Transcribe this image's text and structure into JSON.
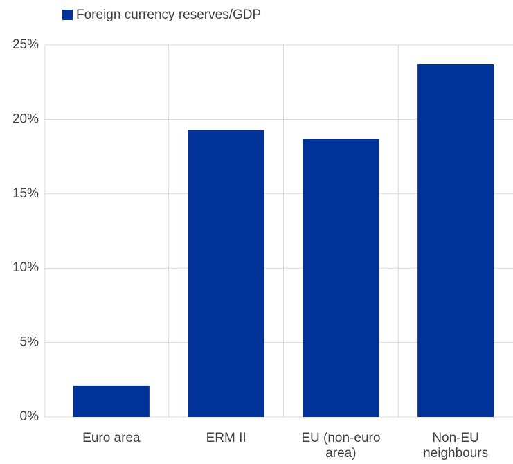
{
  "chart_data": {
    "type": "bar",
    "legend": "top-left",
    "categories": [
      "Euro area",
      "ERM II",
      "EU (non-euro area)",
      "Non-EU neighbours"
    ],
    "series": [
      {
        "name": "Foreign currency reserves/GDP",
        "color": "#003299",
        "values": [
          2.1,
          19.3,
          18.7,
          23.7
        ]
      }
    ],
    "ylim": [
      0,
      25
    ],
    "yticks": [
      {
        "value": 0,
        "label": "0%"
      },
      {
        "value": 5,
        "label": "5%"
      },
      {
        "value": 10,
        "label": "10%"
      },
      {
        "value": 15,
        "label": "15%"
      },
      {
        "value": 20,
        "label": "20%"
      },
      {
        "value": 25,
        "label": "25%"
      }
    ],
    "grid": true
  }
}
